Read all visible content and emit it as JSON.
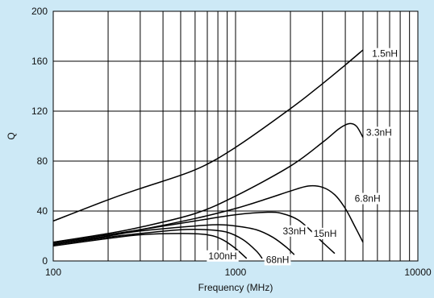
{
  "chart_data": {
    "type": "line",
    "xlabel": "Frequency (MHz)",
    "ylabel": "Q",
    "xscale": "log",
    "xlim": [
      100,
      10000
    ],
    "ylim": [
      0,
      200
    ],
    "grid": true,
    "x_ticks": [
      "100",
      "1000",
      "10000"
    ],
    "y_ticks": [
      "0",
      "40",
      "80",
      "120",
      "160",
      "200"
    ],
    "series": [
      {
        "name": "1.5nH",
        "x": [
          100,
          200,
          300,
          600,
          1000,
          2000,
          3000,
          4000,
          5000
        ],
        "y": [
          32,
          49,
          58,
          73,
          91,
          122,
          142,
          157,
          169
        ]
      },
      {
        "name": "3.3nH",
        "x": [
          100,
          200,
          300,
          600,
          1000,
          2000,
          3000,
          3700,
          4200,
          4600,
          5000
        ],
        "y": [
          15,
          22,
          27,
          38,
          52,
          76,
          95,
          106,
          110,
          108,
          99
        ]
      },
      {
        "name": "6.8nH",
        "x": [
          100,
          200,
          300,
          600,
          1000,
          1500,
          2000,
          2500,
          3000,
          3500,
          4000,
          4500,
          5000
        ],
        "y": [
          14,
          21,
          25,
          34,
          42,
          50,
          56,
          60,
          59,
          53,
          42,
          28,
          15
        ]
      },
      {
        "name": "15nH",
        "x": [
          100,
          200,
          300,
          600,
          1000,
          1500,
          1800,
          2200,
          2600,
          3000,
          3500
        ],
        "y": [
          14,
          21,
          25,
          32,
          37,
          39,
          38,
          33,
          24,
          15,
          6
        ]
      },
      {
        "name": "33nH",
        "x": [
          100,
          200,
          300,
          600,
          800,
          1000,
          1300,
          1600,
          1900,
          2100
        ],
        "y": [
          13,
          20,
          24,
          28,
          29,
          28,
          25,
          19,
          11,
          5
        ]
      },
      {
        "name": "68nH",
        "x": [
          100,
          200,
          300,
          500,
          700,
          900,
          1100,
          1300,
          1400
        ],
        "y": [
          13,
          19,
          22,
          25,
          25,
          23,
          17,
          8,
          2
        ]
      },
      {
        "name": "100nH",
        "x": [
          100,
          200,
          300,
          500,
          700,
          850,
          1000,
          1150
        ],
        "y": [
          12,
          18,
          21,
          22,
          21,
          17,
          10,
          2
        ]
      }
    ]
  }
}
